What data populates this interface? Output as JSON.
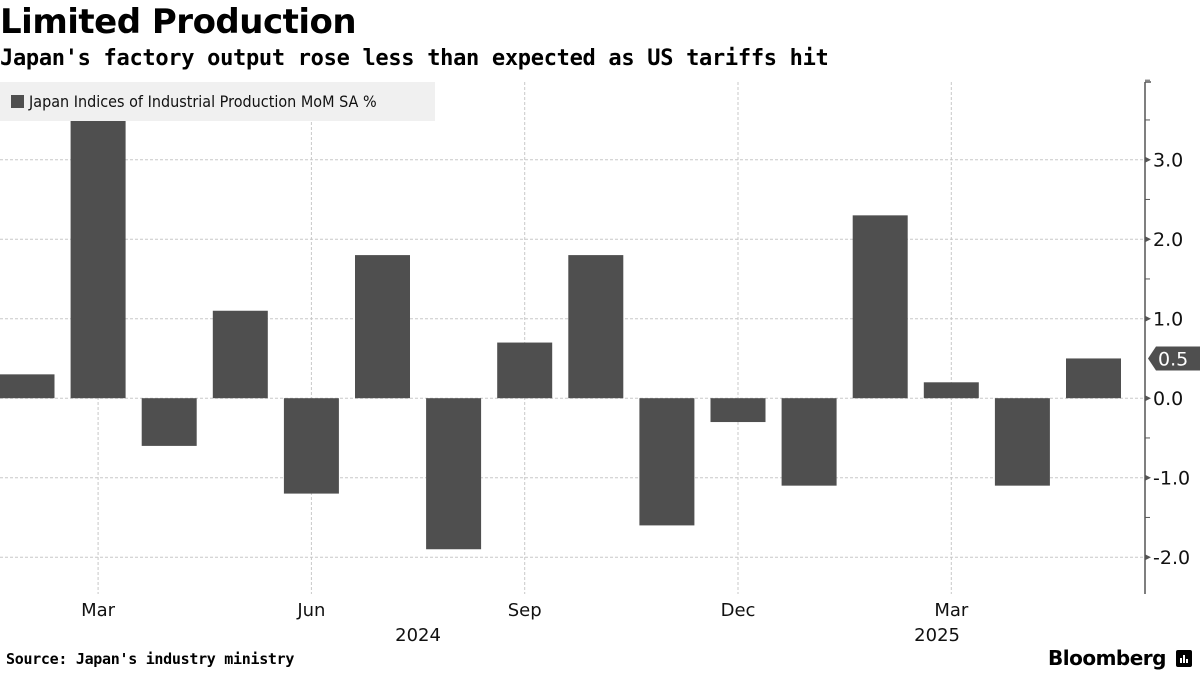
{
  "header": {
    "title": "Limited Production",
    "subtitle": "Japan's factory output rose less than expected as US tariffs hit"
  },
  "footer": {
    "source": "Source: Japan's industry ministry",
    "brand": "Bloomberg"
  },
  "colors": {
    "bar": "#4f4f4f",
    "grid": "#c8c8c8",
    "axis": "#555555",
    "legend_bg": "#f0f0f0"
  },
  "chart_data": {
    "type": "bar",
    "title": "Limited Production",
    "subtitle": "Japan's factory output rose less than expected as US tariffs hit",
    "xlabel": "",
    "ylabel": "",
    "legend": [
      "Japan Indices of Industrial Production MoM SA %"
    ],
    "legend_position": "top-left",
    "categories": [
      "Feb 2024",
      "Mar 2024",
      "Apr 2024",
      "May 2024",
      "Jun 2024",
      "Jul 2024",
      "Aug 2024",
      "Sep 2024",
      "Oct 2024",
      "Nov 2024",
      "Dec 2024",
      "Jan 2025",
      "Feb 2025",
      "Mar 2025",
      "Apr 2025",
      "May 2025"
    ],
    "series": [
      {
        "name": "Japan Indices of Industrial Production MoM SA %",
        "values": [
          0.3,
          3.5,
          -0.6,
          1.1,
          -1.2,
          1.8,
          -1.9,
          0.7,
          1.8,
          -1.6,
          -0.3,
          -1.1,
          2.3,
          0.2,
          -1.1,
          0.5
        ]
      }
    ],
    "ylim": [
      -2.5,
      4.0
    ],
    "y_ticks": [
      {
        "value": 3.0,
        "label": "3.0"
      },
      {
        "value": 2.0,
        "label": "2.0"
      },
      {
        "value": 1.0,
        "label": "1.0"
      },
      {
        "value": 0.0,
        "label": "0.0"
      },
      {
        "value": -1.0,
        "label": "-1.0"
      },
      {
        "value": -2.0,
        "label": "-2.0"
      }
    ],
    "y_minor_ticks": [
      4.0,
      3.5,
      2.5,
      1.5,
      -0.5,
      -1.5
    ],
    "x_ticks": [
      {
        "index": 1,
        "label": "Mar"
      },
      {
        "index": 4,
        "label": "Jun"
      },
      {
        "index": 7,
        "label": "Sep"
      },
      {
        "index": 10,
        "label": "Dec"
      },
      {
        "index": 13,
        "label": "Mar"
      }
    ],
    "x_year_labels": [
      {
        "index": 5.5,
        "label": "2024"
      },
      {
        "index": 12.8,
        "label": "2025"
      }
    ],
    "last_value_label": "0.5",
    "grid": true,
    "y_axis_side": "right"
  }
}
